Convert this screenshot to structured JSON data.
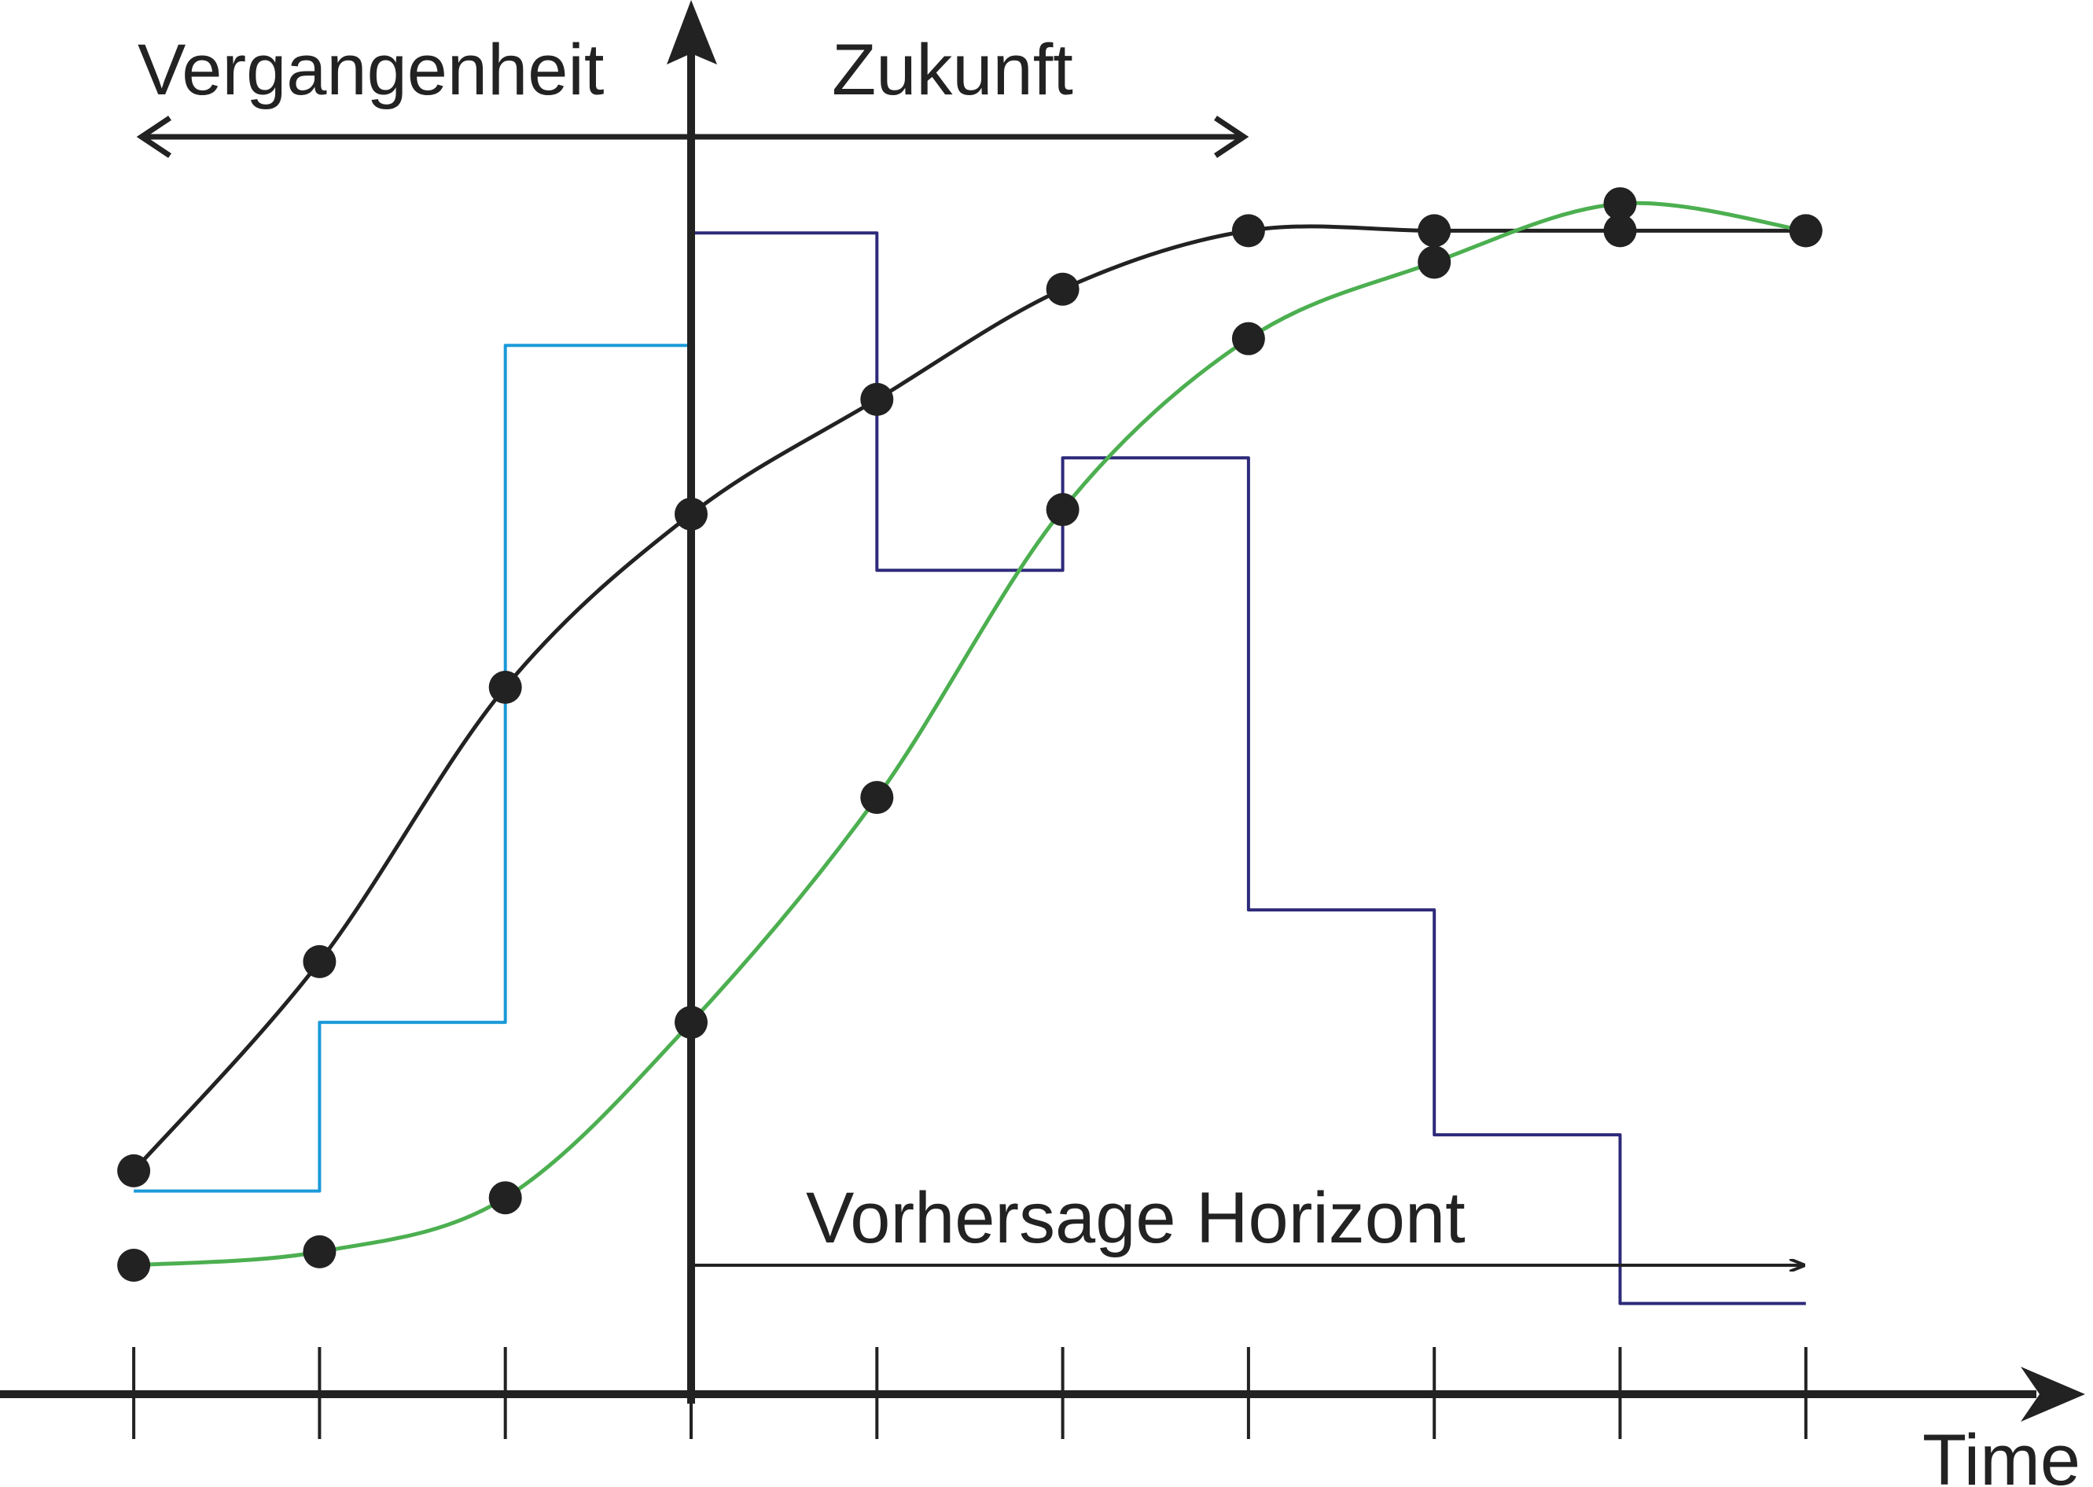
{
  "labels": {
    "past": "Vergangenheit",
    "future": "Zukunft",
    "horizon": "Vorhersage Horizont",
    "time_axis": "Time"
  },
  "colors": {
    "axis": "#222222",
    "reference_curve": "#222222",
    "predicted_output": "#4caf50",
    "past_input": "#1a9ad8",
    "future_input": "#2e2a7a",
    "points": "#222222"
  },
  "chart_data": {
    "type": "line",
    "x_ticks": [
      -3,
      -2,
      -1,
      0,
      1,
      2,
      3,
      4,
      5,
      6
    ],
    "present_time": 0,
    "horizon": [
      0,
      6
    ],
    "series": [
      {
        "key": "reference",
        "x": [
          -3,
          -2,
          -1,
          0,
          1,
          2,
          3,
          4,
          5,
          6
        ],
        "y": [
          0.42,
          1.35,
          2.57,
          3.34,
          3.85,
          4.34,
          4.6,
          4.6,
          4.6,
          4.6
        ],
        "markers": true
      },
      {
        "key": "output",
        "x": [
          -3,
          -2,
          -1,
          0,
          1,
          2,
          3,
          4,
          5,
          6
        ],
        "y": [
          0.0,
          0.06,
          0.3,
          1.08,
          2.08,
          3.36,
          4.12,
          4.46,
          4.72,
          4.6
        ],
        "markers": true
      },
      {
        "key": "input_past",
        "step": true,
        "x": [
          -3,
          -2,
          -1,
          0
        ],
        "y": [
          0.33,
          1.08,
          4.09,
          4.09
        ]
      },
      {
        "key": "input_future",
        "step": true,
        "x": [
          0,
          1,
          2,
          3,
          4,
          5,
          6
        ],
        "y": [
          4.59,
          3.09,
          3.59,
          1.58,
          0.58,
          -0.17,
          -0.17
        ]
      }
    ]
  }
}
